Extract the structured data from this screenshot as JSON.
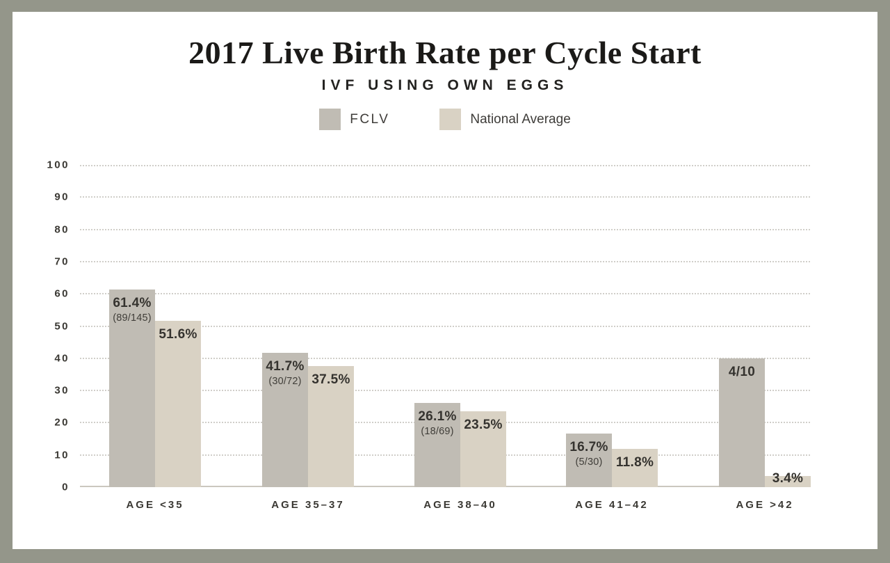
{
  "page": {
    "background_color": "#94968a",
    "card_color": "#ffffff"
  },
  "chart_data": {
    "type": "bar",
    "title": "2017 Live Birth Rate per Cycle Start",
    "subtitle": "IVF USING OWN EGGS",
    "categories": [
      "AGE <35",
      "AGE 35–37",
      "AGE 38–40",
      "AGE 41–42",
      "AGE >42"
    ],
    "series": [
      {
        "name": "FCLV",
        "color": "#c0bcb4",
        "values": [
          61.4,
          41.7,
          26.1,
          16.7,
          40.0
        ],
        "bar_labels": [
          "61.4%",
          "41.7%",
          "26.1%",
          "16.7%",
          "4/10"
        ],
        "bar_sublabels": [
          "(89/145)",
          "(30/72)",
          "(18/69)",
          "(5/30)",
          ""
        ]
      },
      {
        "name": "National Average",
        "color": "#d9d2c4",
        "values": [
          51.6,
          37.5,
          23.5,
          11.8,
          3.4
        ],
        "bar_labels": [
          "51.6%",
          "37.5%",
          "23.5%",
          "11.8%",
          "3.4%"
        ],
        "bar_sublabels": [
          "",
          "",
          "",
          "",
          ""
        ]
      }
    ],
    "xlabel": "",
    "ylabel": "",
    "ylim": [
      0,
      100
    ],
    "yticks": [
      0,
      10,
      20,
      30,
      40,
      50,
      60,
      70,
      80,
      90,
      100
    ],
    "grid": "horizontal-dotted",
    "legend_position": "top-center",
    "colors": {
      "gridline": "#d0cec9",
      "axis_line": "#cbc7bf",
      "tick_text": "#3a3833",
      "title_text": "#1b1a18"
    }
  }
}
